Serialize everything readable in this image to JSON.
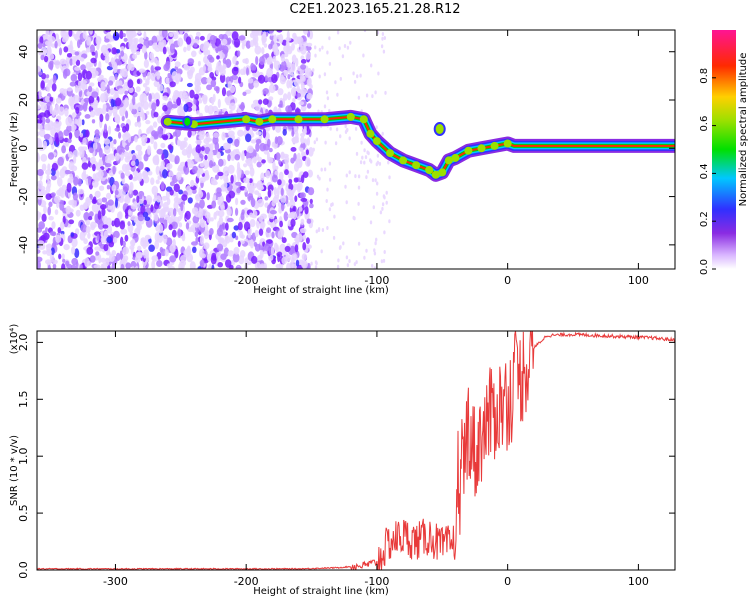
{
  "figure": {
    "title": "C2E1.2023.165.21.28.R12"
  },
  "chart_data": [
    {
      "type": "heatmap",
      "xlabel": "Height of straight line (km)",
      "ylabel": "Frequency (Hz)",
      "xlim": [
        -360,
        128
      ],
      "ylim": [
        -50,
        49
      ],
      "x_ticks": [
        -300,
        -200,
        -100,
        0,
        100
      ],
      "y_ticks": [
        -40,
        -20,
        0,
        20,
        40
      ],
      "colorbar": {
        "label": "Normalized spectral amplitude",
        "range": [
          0,
          1
        ],
        "ticks": [
          "0.0",
          "0.2",
          "0.4",
          "0.6",
          "0.8"
        ],
        "colormap": "rainbow (white-violet-blue-cyan-green-yellow-red-magenta)"
      },
      "ridge": {
        "x": [
          -260,
          -240,
          -200,
          -190,
          -180,
          -160,
          -140,
          -120,
          -110,
          -105,
          -100,
          -90,
          -80,
          -70,
          -60,
          -55,
          -50,
          -45,
          -40,
          -30,
          -20,
          -10,
          0,
          5,
          128
        ],
        "freq": [
          11,
          10,
          12,
          11,
          12,
          12,
          12,
          13,
          12,
          6,
          3,
          -2,
          -5,
          -7,
          -9,
          -11,
          -10,
          -5,
          -4,
          -1,
          0,
          1,
          2,
          1,
          1
        ]
      },
      "grid": false
    },
    {
      "type": "line",
      "xlabel": "Height of straight line (km)",
      "ylabel": "SNR (10 * v/v)",
      "y_multiplier": "(x10⁴)",
      "xlim": [
        -360,
        128
      ],
      "ylim": [
        0,
        2.1
      ],
      "x_ticks": [
        -300,
        -200,
        -100,
        0,
        100
      ],
      "y_ticks": [
        "0.0",
        "0.5",
        "1.0",
        "1.5",
        "2.0"
      ],
      "series": [
        {
          "color": "#e83a3a",
          "x": [
            -360,
            -300,
            -200,
            -160,
            -130,
            -110,
            -100,
            -90,
            -80,
            -70,
            -60,
            -50,
            -40,
            -35,
            -30,
            -25,
            -20,
            -15,
            -10,
            0,
            10,
            20,
            30,
            50,
            70,
            90,
            110,
            128
          ],
          "y": [
            0.01,
            0.01,
            0.01,
            0.01,
            0.02,
            0.04,
            0.07,
            0.25,
            0.3,
            0.25,
            0.3,
            0.2,
            0.25,
            0.8,
            1.3,
            1.0,
            1.2,
            1.3,
            1.4,
            1.5,
            1.7,
            1.95,
            2.06,
            2.07,
            2.06,
            2.05,
            2.04,
            2.02
          ]
        }
      ],
      "grid": false
    }
  ]
}
